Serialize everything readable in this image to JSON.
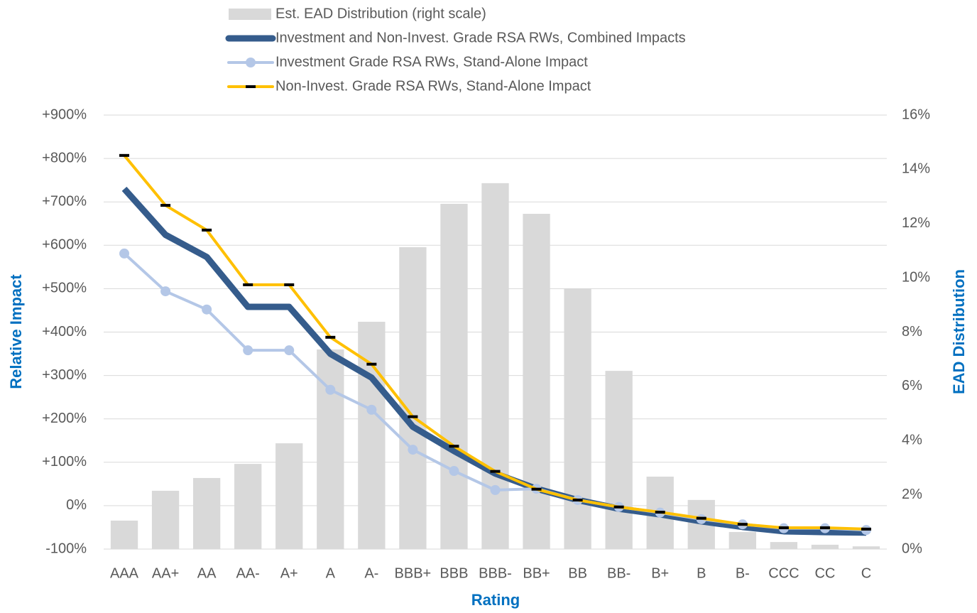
{
  "chart_data": {
    "type": "bar-line",
    "x_label": "Rating",
    "y_label": "Relative Impact",
    "y2_label": "EAD Distribution",
    "categories": [
      "AAA",
      "AA+",
      "AA",
      "AA-",
      "A+",
      "A",
      "A-",
      "BBB+",
      "BBB",
      "BBB-",
      "BB+",
      "BB",
      "BB-",
      "B+",
      "B",
      "B-",
      "CCC",
      "CC",
      "C"
    ],
    "series": [
      {
        "name": "Est. EAD Distribution (right scale)",
        "kind": "bar",
        "axis": "y2",
        "color": "#d9d9d9",
        "values": [
          1.05,
          2.15,
          2.62,
          3.14,
          3.9,
          7.36,
          8.38,
          11.13,
          12.73,
          13.49,
          12.36,
          9.61,
          6.57,
          2.67,
          1.81,
          0.63,
          0.26,
          0.16,
          0.1
        ]
      },
      {
        "name": "Investment and Non-Invest. Grade RSA RWs, Combined Impacts",
        "kind": "line",
        "color": "#355c8c",
        "width": 9,
        "values": [
          730,
          624,
          573,
          458,
          458,
          350,
          295,
          182,
          126,
          74,
          39,
          13,
          -7,
          -20,
          -36,
          -49,
          -59,
          -61,
          -62
        ]
      },
      {
        "name": "Investment Grade RSA RWs, Stand-Alone Impact",
        "kind": "line",
        "color": "#b4c7e7",
        "width": 4,
        "marker": "circle",
        "values": [
          581,
          494,
          452,
          358,
          358,
          267,
          221,
          129,
          80,
          36,
          39,
          13,
          -3,
          -16,
          -31,
          -43,
          -52,
          -52,
          -56
        ]
      },
      {
        "name": "Non-Invest. Grade RSA RWs, Stand-Alone Impact",
        "kind": "line",
        "color": "#ffc000",
        "width": 4,
        "marker": "dash",
        "values": [
          807,
          692,
          635,
          509,
          509,
          388,
          326,
          205,
          137,
          79,
          38,
          13,
          -3,
          -15,
          -29,
          -43,
          -51,
          -51,
          -54
        ]
      }
    ],
    "ylim": [
      -100,
      900
    ],
    "yticks": [
      {
        "value": -100,
        "label": "-100%"
      },
      {
        "value": 0,
        "label": "0%"
      },
      {
        "value": 100,
        "label": "+100%"
      },
      {
        "value": 200,
        "label": "+200%"
      },
      {
        "value": 300,
        "label": "+300%"
      },
      {
        "value": 400,
        "label": "+400%"
      },
      {
        "value": 500,
        "label": "+500%"
      },
      {
        "value": 600,
        "label": "+600%"
      },
      {
        "value": 700,
        "label": "+700%"
      },
      {
        "value": 800,
        "label": "+800%"
      },
      {
        "value": 900,
        "label": "+900%"
      }
    ],
    "y2lim": [
      0,
      16
    ],
    "y2ticks": [
      {
        "value": 0,
        "label": "0%"
      },
      {
        "value": 2,
        "label": "2%"
      },
      {
        "value": 4,
        "label": "4%"
      },
      {
        "value": 6,
        "label": "6%"
      },
      {
        "value": 8,
        "label": "8%"
      },
      {
        "value": 10,
        "label": "10%"
      },
      {
        "value": 12,
        "label": "12%"
      },
      {
        "value": 14,
        "label": "14%"
      },
      {
        "value": 16,
        "label": "16%"
      }
    ],
    "grid": true
  }
}
